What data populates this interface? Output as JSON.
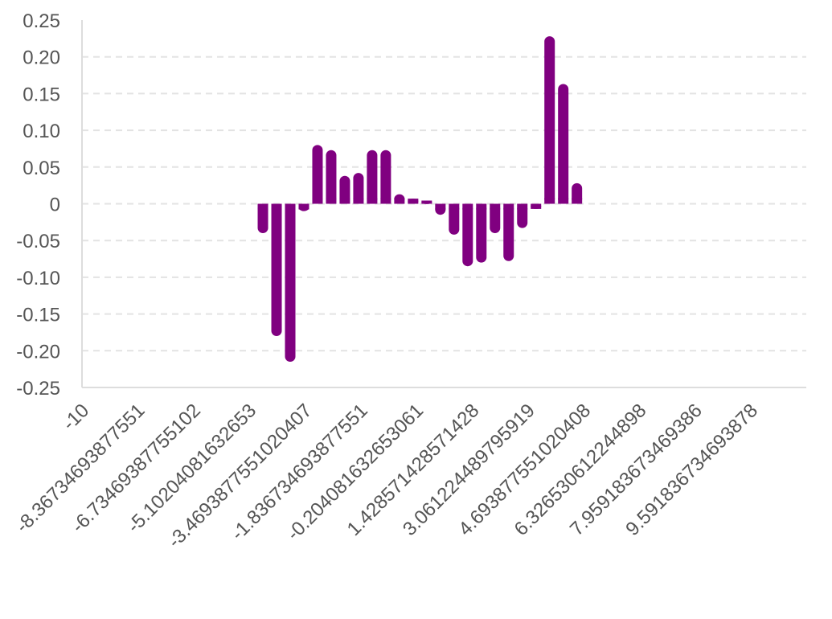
{
  "chart_data": {
    "type": "bar",
    "title": "",
    "xlabel": "",
    "ylabel": "",
    "ylim": [
      -0.25,
      0.25
    ],
    "grid": true,
    "bar_color": "#800080",
    "y_ticks": [
      "0.25",
      "0.20",
      "0.15",
      "0.10",
      "0.05",
      "0",
      "-0.05",
      "-0.10",
      "-0.15",
      "-0.20",
      "-0.25"
    ],
    "x_ticks": [
      "-10",
      "-8.36734693877551",
      "-6.73469387755102",
      "-5.10204081632653",
      "-3.4693877551020407",
      "-1.836734693877551",
      "-0.204081632653061",
      "1.428571428571428",
      "3.061224489795919",
      "4.693877551020408",
      "6.326530612244898",
      "7.959183673469386",
      "9.591836734693878"
    ],
    "x_tick_values": [
      -10,
      -8.36734693877551,
      -6.73469387755102,
      -5.10204081632653,
      -3.4693877551020407,
      -1.836734693877551,
      -0.204081632653061,
      1.428571428571428,
      3.061224489795919,
      4.693877551020408,
      6.326530612244898,
      7.959183673469386,
      9.591836734693878
    ],
    "x": [
      -4.7,
      -4.3,
      -3.9,
      -3.5,
      -3.1,
      -2.7,
      -2.3,
      -1.9,
      -1.5,
      -1.1,
      -0.7,
      -0.3,
      0.1,
      0.5,
      0.9,
      1.3,
      1.7,
      2.1,
      2.5,
      2.9,
      3.3,
      3.7,
      4.1,
      4.5
    ],
    "values": [
      -0.04,
      -0.18,
      -0.215,
      -0.01,
      0.08,
      0.073,
      0.038,
      0.042,
      0.073,
      0.073,
      0.013,
      0.007,
      0.004,
      -0.015,
      -0.042,
      -0.085,
      -0.08,
      -0.04,
      -0.078,
      -0.033,
      -0.007,
      0.228,
      0.163,
      0.028
    ]
  }
}
